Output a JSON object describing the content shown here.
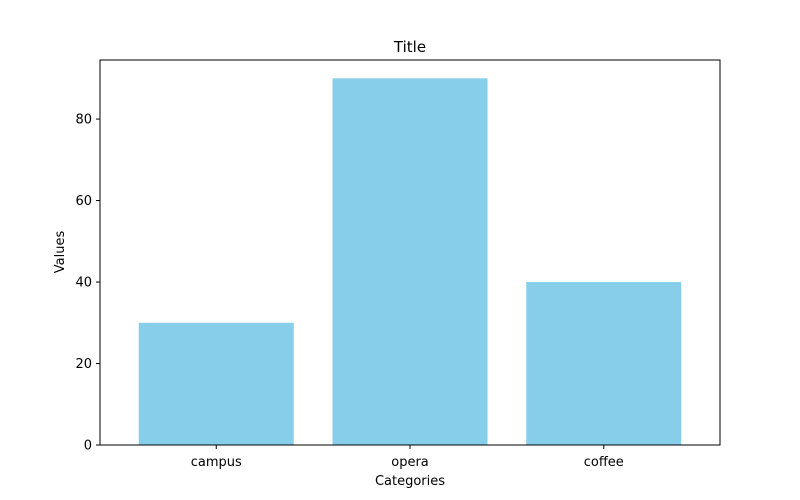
{
  "chart_data": {
    "type": "bar",
    "title": "Title",
    "xlabel": "Categories",
    "ylabel": "Values",
    "categories": [
      "campus",
      "opera",
      "coffee"
    ],
    "values": [
      30,
      90,
      40
    ],
    "yticks": [
      0,
      20,
      40,
      60,
      80
    ],
    "ylim": [
      0,
      94.5
    ],
    "bar_color": "#87CEEB",
    "grid": false,
    "legend": false
  }
}
